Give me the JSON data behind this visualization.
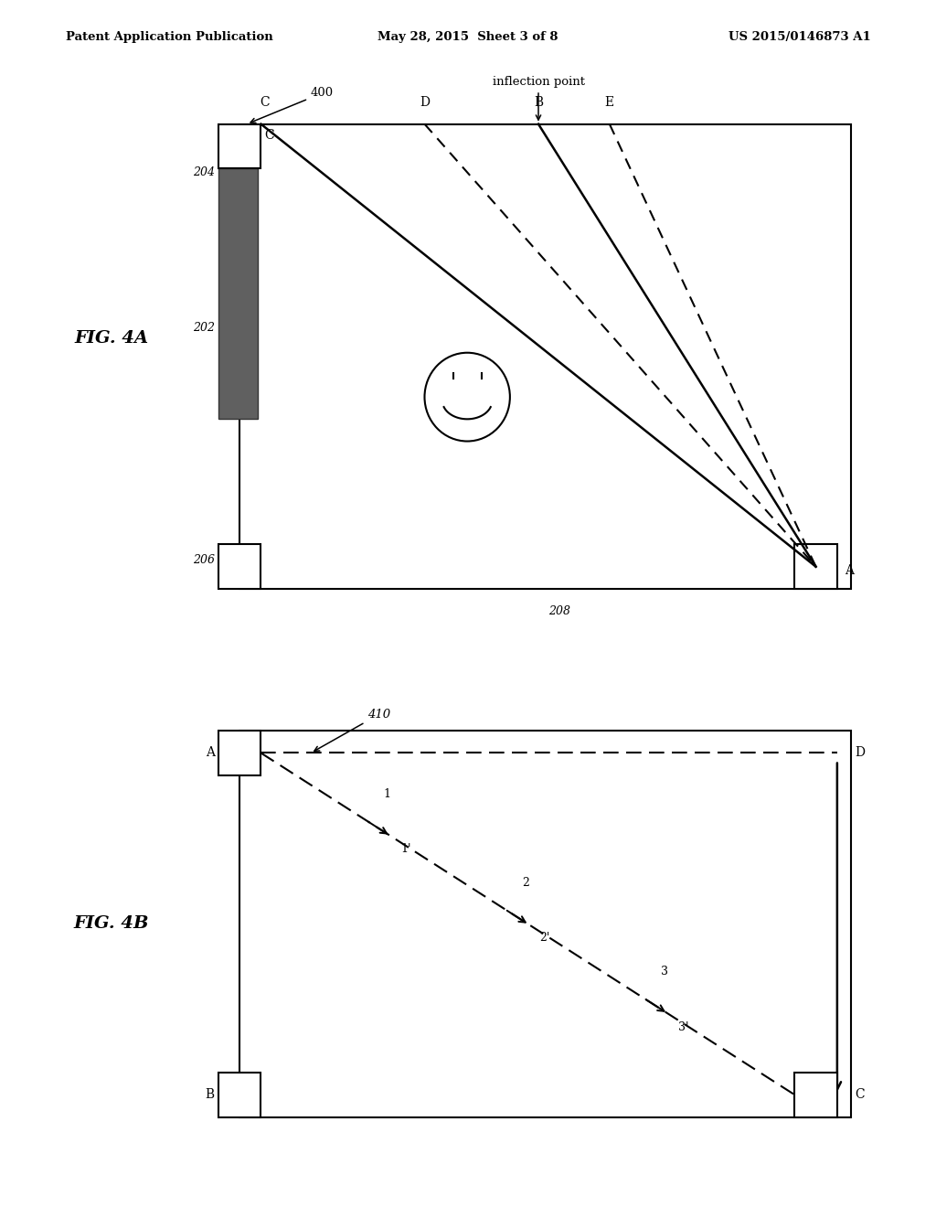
{
  "header_left": "Patent Application Publication",
  "header_center": "May 28, 2015  Sheet 3 of 8",
  "header_right": "US 2015/0146873 A1",
  "fig4a_label": "FIG. 4A",
  "fig4b_label": "FIG. 4B",
  "bg_color": "#ffffff",
  "dark_rect_color": "#606060"
}
